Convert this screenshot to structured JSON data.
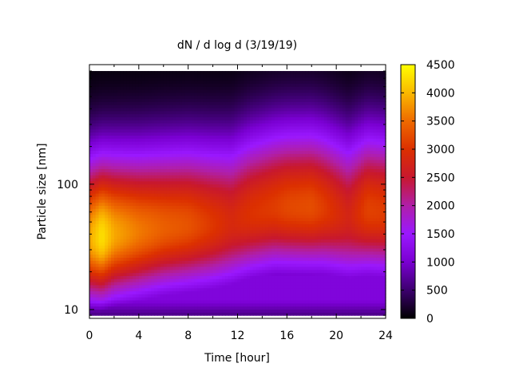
{
  "chart_data": {
    "type": "heatmap",
    "title": "dN / d log d (3/19/19)",
    "xlabel": "Time [hour]",
    "ylabel": "Particle size [nm]",
    "xlim": [
      0,
      24
    ],
    "ylim": [
      8.5,
      900
    ],
    "y_scale": "log",
    "x_ticks": [
      "0",
      "4",
      "8",
      "12",
      "16",
      "20",
      "24"
    ],
    "x_tick_values": [
      0,
      4,
      8,
      12,
      16,
      20,
      24
    ],
    "y_ticks": [
      "10",
      "100"
    ],
    "y_tick_values": [
      10,
      100
    ],
    "colorbar": {
      "range": [
        0,
        4500
      ],
      "ticks": [
        "0",
        "500",
        "1000",
        "1500",
        "2000",
        "2500",
        "3000",
        "3500",
        "4000",
        "4500"
      ],
      "tick_values": [
        0,
        500,
        1000,
        1500,
        2000,
        2500,
        3000,
        3500,
        4000,
        4500
      ],
      "colormap": [
        "#000000",
        "#3c006e",
        "#7a00d2",
        "#9a18ff",
        "#b01fa8",
        "#c8182e",
        "#dc3000",
        "#ee6a00",
        "#fab800",
        "#ffff00"
      ]
    },
    "grid": false,
    "size_min": 9.0,
    "size_max": 800,
    "time_points": [
      0,
      1,
      2,
      4,
      6,
      8,
      10,
      11.5,
      13,
      15,
      16,
      18,
      19,
      21,
      22.5,
      24
    ],
    "mode_size_nm": [
      37,
      38,
      40,
      42,
      45,
      47,
      48,
      50,
      58,
      65,
      66,
      66,
      64,
      55,
      62,
      60
    ],
    "mode_peak": [
      3900,
      4300,
      3900,
      3600,
      3400,
      3300,
      3050,
      2850,
      3000,
      3100,
      3200,
      3250,
      3100,
      2750,
      3150,
      3100
    ],
    "bar_titles": []
  }
}
